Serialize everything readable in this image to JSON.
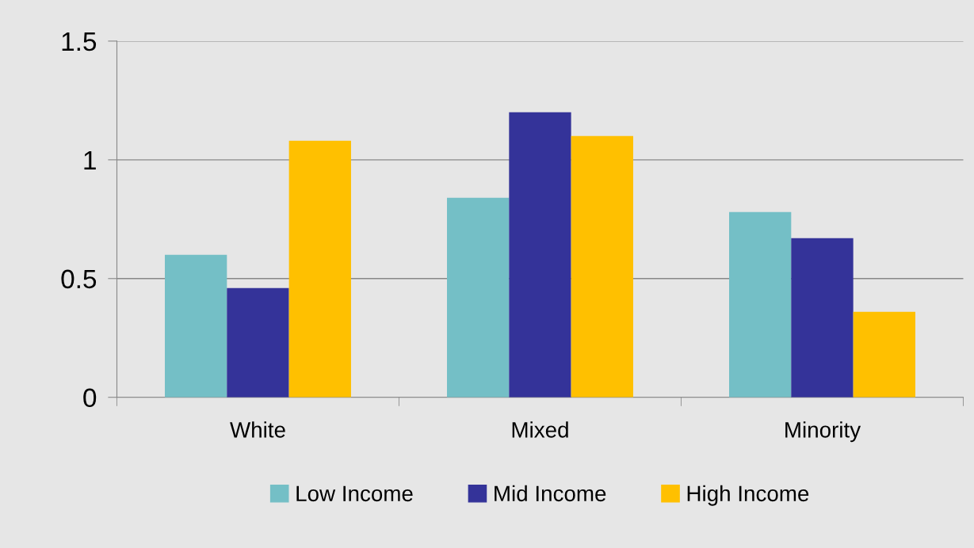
{
  "chart_data": {
    "type": "bar",
    "categories": [
      "White",
      "Mixed",
      "Minority"
    ],
    "series": [
      {
        "name": "Low Income",
        "color": "#74bfc6",
        "values": [
          0.6,
          0.84,
          0.78
        ]
      },
      {
        "name": "Mid Income",
        "color": "#343399",
        "values": [
          0.46,
          1.2,
          0.67
        ]
      },
      {
        "name": "High Income",
        "color": "#ffc000",
        "values": [
          1.08,
          1.1,
          0.36
        ]
      }
    ],
    "ylim": [
      0,
      1.5
    ],
    "yticks": [
      0,
      0.5,
      1,
      1.5
    ],
    "grid": "y",
    "legend": "bottom"
  }
}
